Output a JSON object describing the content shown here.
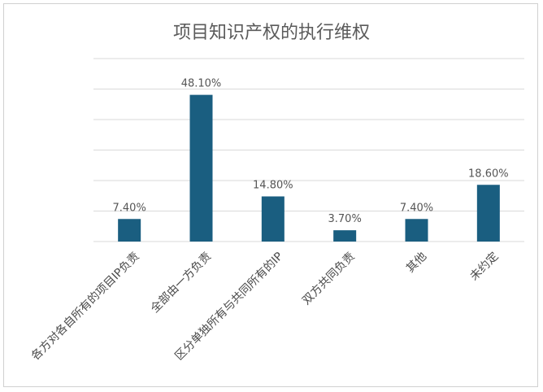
{
  "chart_data": {
    "type": "bar",
    "title": "项目知识产权的执行维权",
    "xlabel": "",
    "ylabel": "",
    "categories": [
      "各方对各自所有的项目IP负责",
      "全部由一方负责",
      "区分单独所有与共同所有的IP",
      "双方共同负责",
      "其他",
      "未约定"
    ],
    "values": [
      7.4,
      48.1,
      14.8,
      3.7,
      7.4,
      18.6
    ],
    "value_labels": [
      "7.40%",
      "48.10%",
      "14.80%",
      "3.70%",
      "7.40%",
      "18.60%"
    ],
    "ylim": [
      0,
      60
    ],
    "y_ticks": [
      0,
      10,
      20,
      30,
      40,
      50,
      60
    ],
    "grid": true,
    "legend": "none",
    "bar_color": "#1a5e80",
    "grid_color": "#d9d9d9"
  }
}
